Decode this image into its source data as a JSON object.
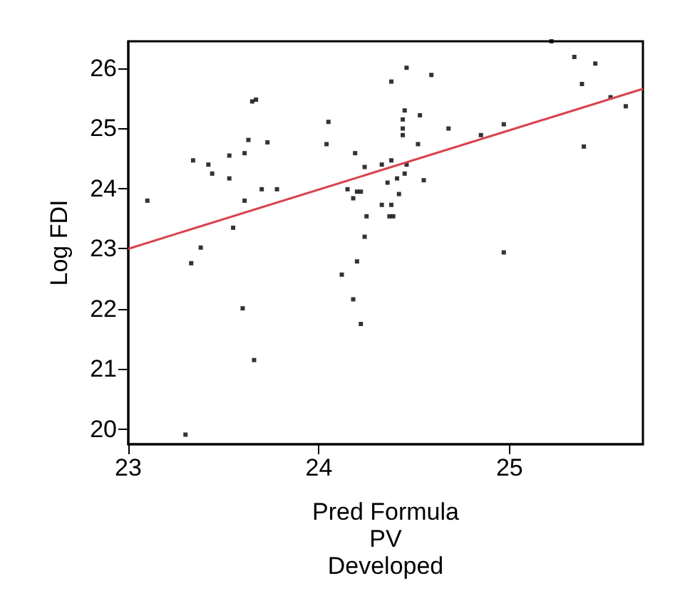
{
  "chart_data": {
    "type": "scatter",
    "xlabel": "Pred Formula\nPV\nDeveloped",
    "ylabel": "Log FDI",
    "xlim": [
      23,
      25.7
    ],
    "ylim": [
      19.75,
      26.45
    ],
    "xticks": [
      23,
      24,
      25
    ],
    "yticks": [
      20,
      21,
      22,
      23,
      24,
      25,
      26
    ],
    "grid": false,
    "marker": "square",
    "series": [
      {
        "color": "#000000",
        "x": [
          23.1,
          23.34,
          23.42,
          23.44,
          23.53,
          23.53,
          23.61,
          23.63,
          23.65,
          23.67,
          23.73,
          23.61,
          23.7,
          23.78,
          23.55,
          24.04,
          24.05,
          24.15,
          24.18,
          24.19,
          24.2,
          24.22,
          24.24,
          24.25,
          24.24,
          24.33,
          24.33,
          25.22,
          25.34,
          25.45,
          25.38,
          25.53,
          25.61,
          25.39,
          24.46,
          24.38,
          24.59,
          24.45,
          24.44,
          24.53,
          24.44,
          24.44,
          24.68,
          24.85,
          24.97,
          24.52,
          24.38,
          24.46,
          24.45,
          24.41,
          24.36,
          24.55,
          24.42,
          24.38,
          24.37,
          24.39,
          23.33,
          23.38,
          23.6,
          23.66,
          23.3,
          24.12,
          24.18,
          24.2,
          24.22,
          24.97
        ],
        "values": [
          23.8,
          24.47,
          24.4,
          24.25,
          24.55,
          24.17,
          24.59,
          24.81,
          25.45,
          25.48,
          24.77,
          23.8,
          23.99,
          23.99,
          23.35,
          24.74,
          25.11,
          23.99,
          23.84,
          24.59,
          23.95,
          23.95,
          24.36,
          23.54,
          23.2,
          24.4,
          23.73,
          26.45,
          26.19,
          26.08,
          25.74,
          25.52,
          25.37,
          24.7,
          26.01,
          25.78,
          25.89,
          25.3,
          25.15,
          25.22,
          25.0,
          24.89,
          25.0,
          24.89,
          25.07,
          24.74,
          24.47,
          24.4,
          24.25,
          24.17,
          24.1,
          24.14,
          23.91,
          23.73,
          23.54,
          23.54,
          22.76,
          23.02,
          22.01,
          21.15,
          19.91,
          22.57,
          22.16,
          22.79,
          21.75,
          22.94
        ]
      },
      {
        "type": "line",
        "color": "#d9434f",
        "marker": "none",
        "x": [
          23,
          25.7
        ],
        "values": [
          23.0,
          25.66
        ]
      }
    ]
  }
}
